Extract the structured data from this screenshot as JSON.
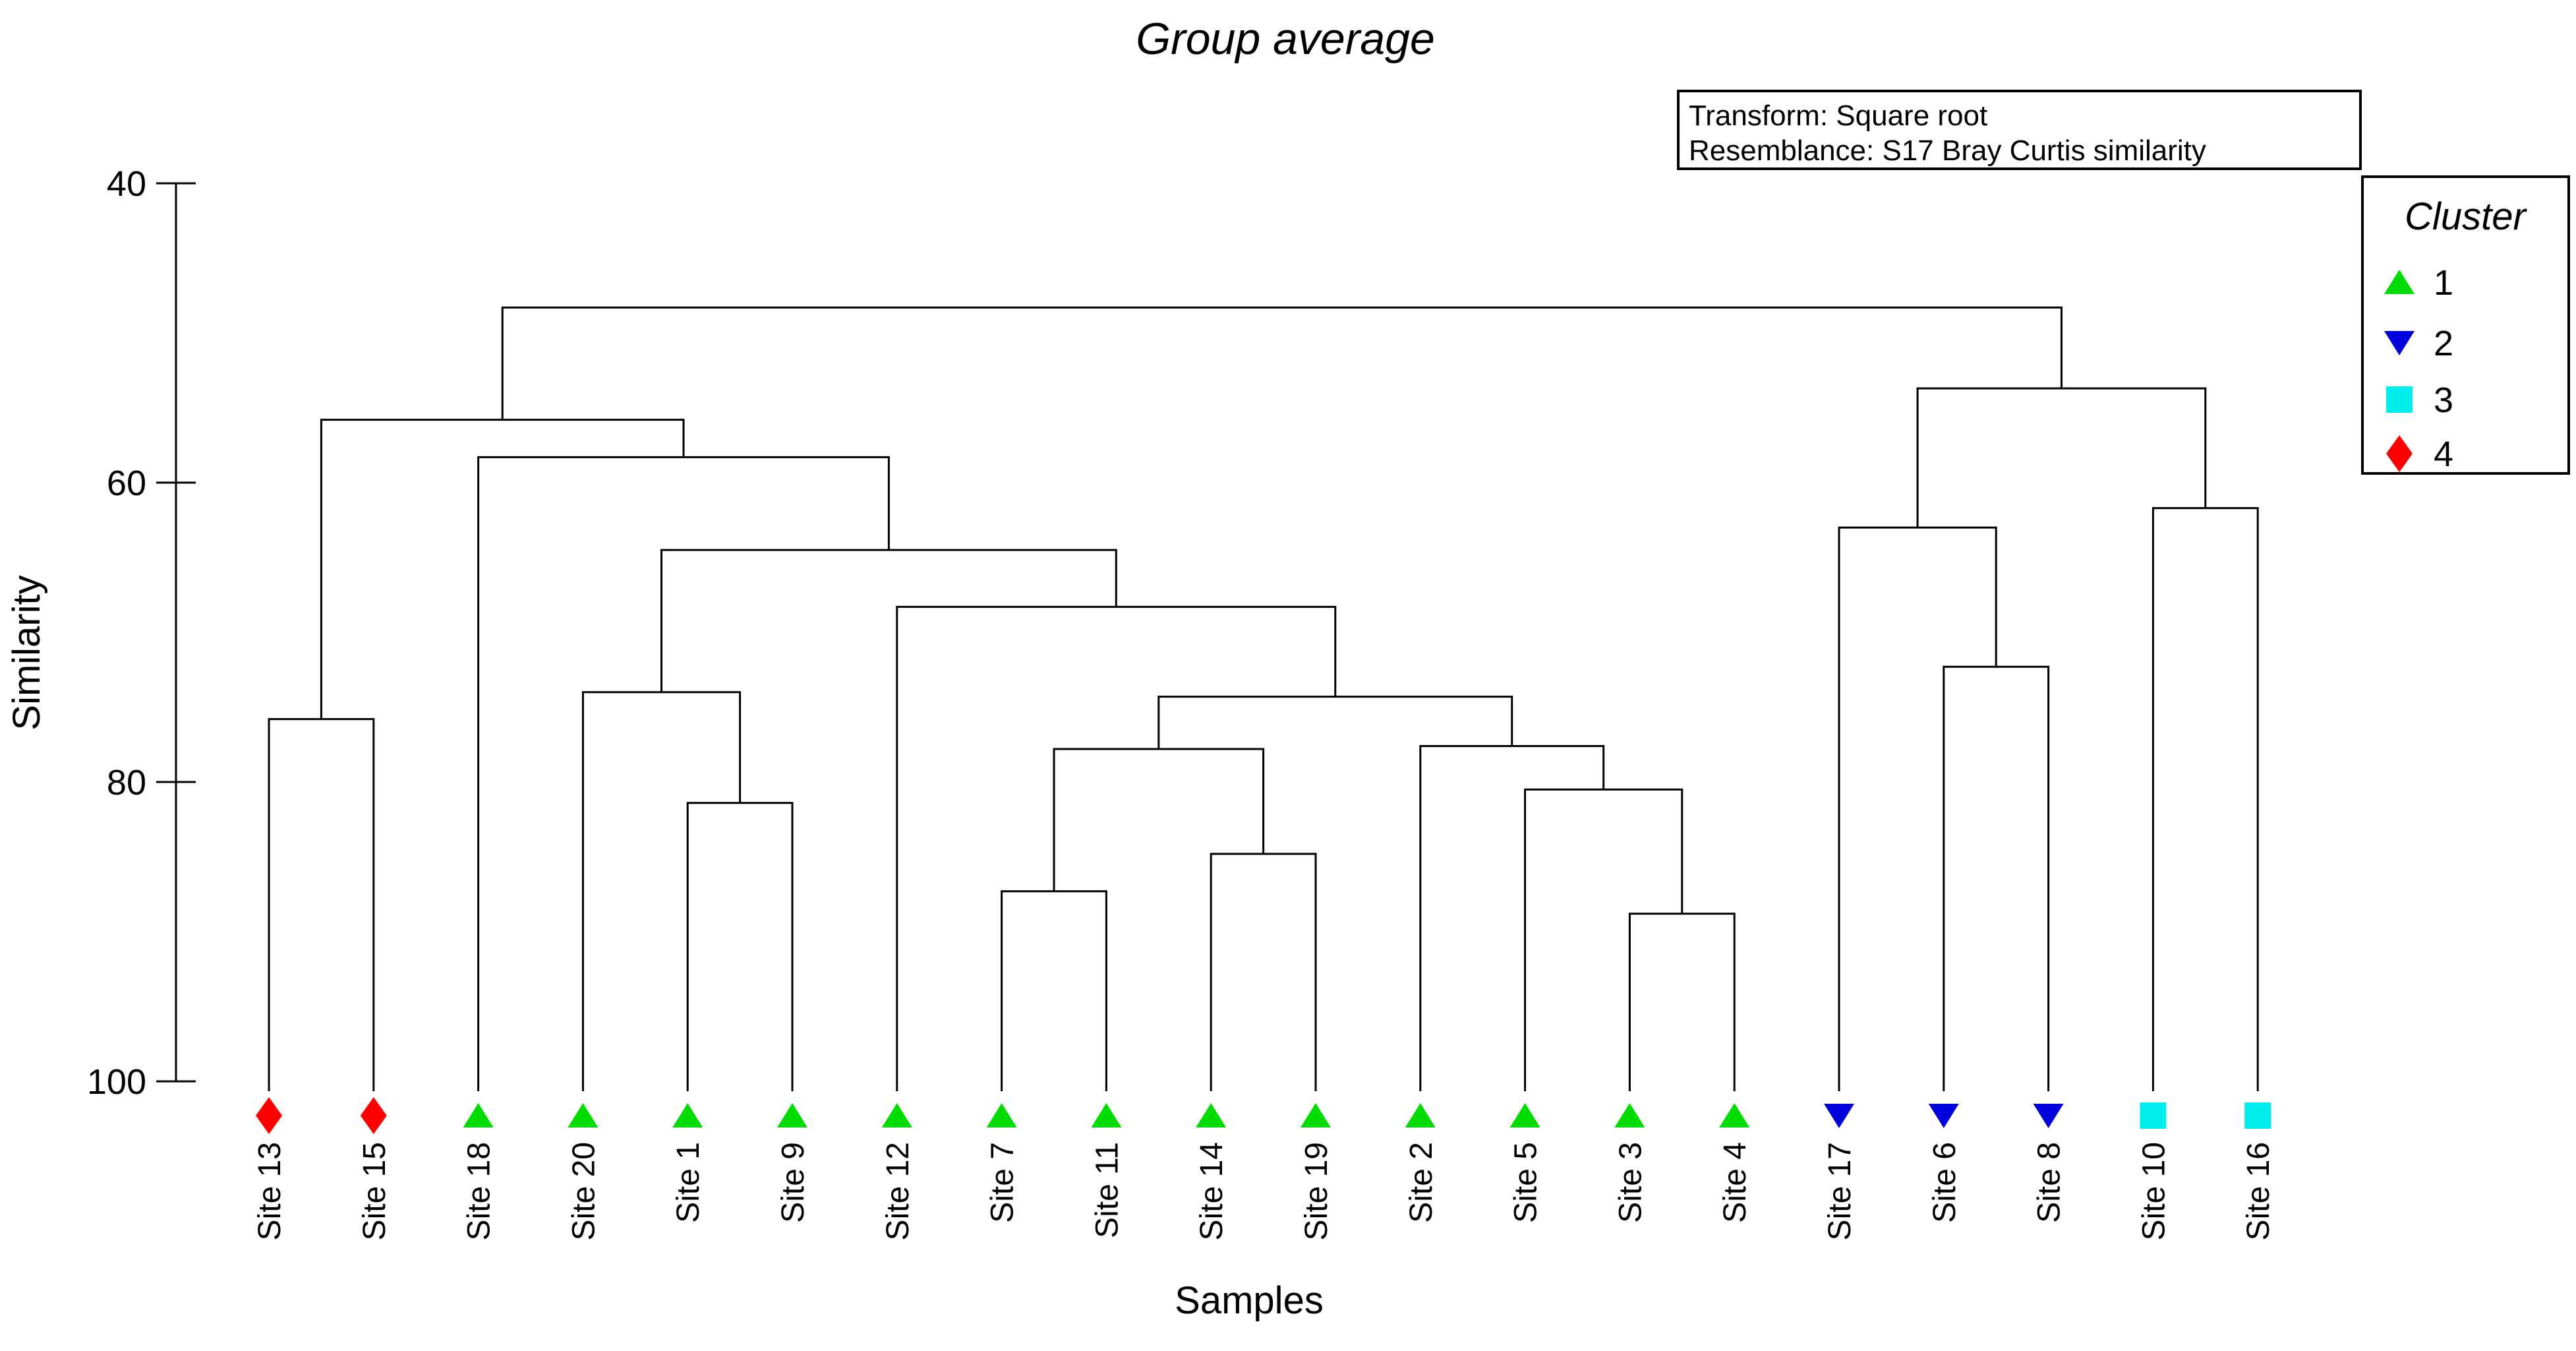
{
  "chart_data": {
    "type": "dendrogram",
    "title": "Group average",
    "title_color": "#1414ff",
    "annotation_lines": [
      "Transform: Square root",
      "Resemblance: S17 Bray Curtis similarity"
    ],
    "xlabel": "Samples",
    "ylabel": "Similarity",
    "y_axis": {
      "min": 40,
      "max": 100,
      "ticks": [
        "40",
        "60",
        "80",
        "100"
      ],
      "direction": "similarity increases downward"
    },
    "legend": {
      "title": "Cluster",
      "title_color": "#1414ff",
      "entries": [
        {
          "label": "1",
          "symbol": "triangle-up",
          "color": "#00dc00"
        },
        {
          "label": "2",
          "symbol": "triangle-down",
          "color": "#0000dc"
        },
        {
          "label": "3",
          "symbol": "square",
          "color": "#00eeee"
        },
        {
          "label": "4",
          "symbol": "diamond",
          "color": "#ff0000"
        }
      ]
    },
    "leaves": [
      {
        "label": "Site 13",
        "cluster": 4
      },
      {
        "label": "Site 15",
        "cluster": 4
      },
      {
        "label": "Site 18",
        "cluster": 1
      },
      {
        "label": "Site 20",
        "cluster": 1
      },
      {
        "label": "Site 1",
        "cluster": 1
      },
      {
        "label": "Site 9",
        "cluster": 1
      },
      {
        "label": "Site 12",
        "cluster": 1
      },
      {
        "label": "Site 7",
        "cluster": 1
      },
      {
        "label": "Site 11",
        "cluster": 1
      },
      {
        "label": "Site 14",
        "cluster": 1
      },
      {
        "label": "Site 19",
        "cluster": 1
      },
      {
        "label": "Site 2",
        "cluster": 1
      },
      {
        "label": "Site 5",
        "cluster": 1
      },
      {
        "label": "Site 3",
        "cluster": 1
      },
      {
        "label": "Site 4",
        "cluster": 1
      },
      {
        "label": "Site 17",
        "cluster": 2
      },
      {
        "label": "Site 6",
        "cluster": 2
      },
      {
        "label": "Site 8",
        "cluster": 2
      },
      {
        "label": "Site 10",
        "cluster": 3
      },
      {
        "label": "Site 16",
        "cluster": 3
      }
    ],
    "merges": [
      {
        "id": "N1",
        "children": [
          "Site 13",
          "Site 15"
        ],
        "similarity": 75.8
      },
      {
        "id": "N2",
        "children": [
          "Site 1",
          "Site 9"
        ],
        "similarity": 81.4
      },
      {
        "id": "N3",
        "children": [
          "Site 20",
          "N2"
        ],
        "similarity": 74.0
      },
      {
        "id": "N4",
        "children": [
          "Site 7",
          "Site 11"
        ],
        "similarity": 87.3
      },
      {
        "id": "N5",
        "children": [
          "Site 14",
          "Site 19"
        ],
        "similarity": 84.8
      },
      {
        "id": "N6",
        "children": [
          "N4",
          "N5"
        ],
        "similarity": 77.8
      },
      {
        "id": "N7",
        "children": [
          "Site 3",
          "Site 4"
        ],
        "similarity": 88.8
      },
      {
        "id": "N8",
        "children": [
          "Site 5",
          "N7"
        ],
        "similarity": 80.5
      },
      {
        "id": "N9",
        "children": [
          "Site 2",
          "N8"
        ],
        "similarity": 77.6
      },
      {
        "id": "N10",
        "children": [
          "N6",
          "N9"
        ],
        "similarity": 74.3
      },
      {
        "id": "N11",
        "children": [
          "Site 12",
          "N10"
        ],
        "similarity": 68.3
      },
      {
        "id": "N12",
        "children": [
          "N3",
          "N11"
        ],
        "similarity": 64.5
      },
      {
        "id": "N13",
        "children": [
          "Site 18",
          "N12"
        ],
        "similarity": 58.3
      },
      {
        "id": "N14",
        "children": [
          "N1",
          "N13"
        ],
        "similarity": 55.8
      },
      {
        "id": "N15",
        "children": [
          "Site 6",
          "Site 8"
        ],
        "similarity": 72.3
      },
      {
        "id": "N16",
        "children": [
          "Site 17",
          "N15"
        ],
        "similarity": 63.0
      },
      {
        "id": "N17",
        "children": [
          "Site 10",
          "Site 16"
        ],
        "similarity": 61.7
      },
      {
        "id": "N18",
        "children": [
          "N16",
          "N17"
        ],
        "similarity": 53.7
      },
      {
        "id": "N19",
        "children": [
          "N14",
          "N18"
        ],
        "similarity": 48.3
      }
    ]
  }
}
